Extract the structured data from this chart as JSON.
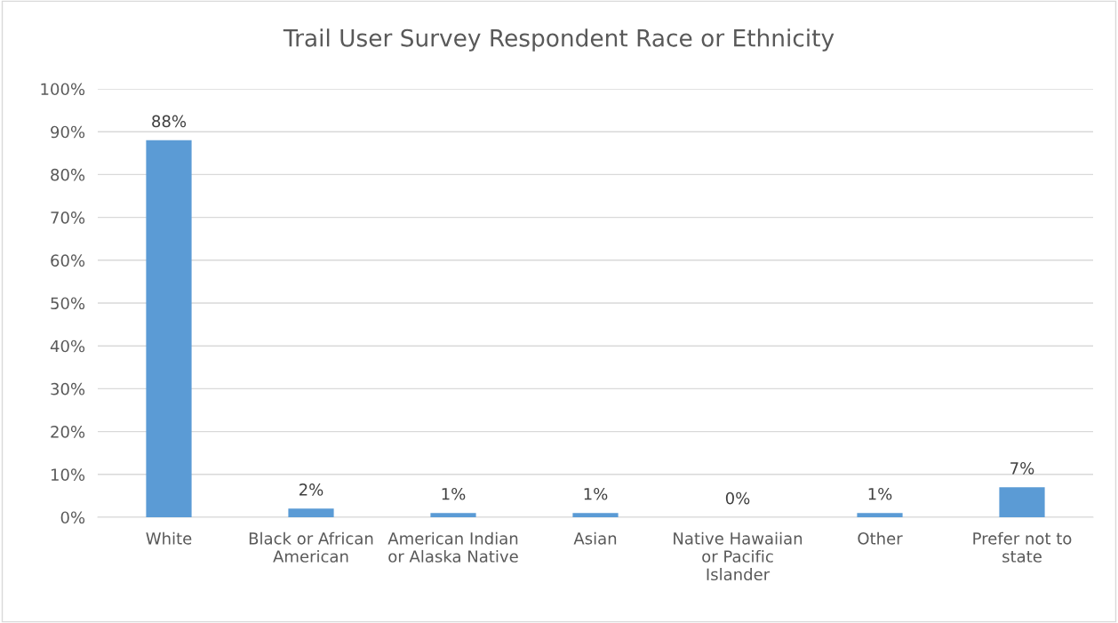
{
  "chart_data": {
    "type": "bar",
    "title": "Trail User Survey Respondent Race or Ethnicity",
    "categories": [
      "White",
      "Black or African\nAmerican",
      "American Indian\nor Alaska Native",
      "Asian",
      "Native Hawaiian\nor Pacific\nIslander",
      "Other",
      "Prefer not to\nstate"
    ],
    "values": [
      88,
      2,
      1,
      1,
      0,
      1,
      7
    ],
    "value_labels": [
      "88%",
      "2%",
      "1%",
      "1%",
      "0%",
      "1%",
      "7%"
    ],
    "color": "#5b9bd5",
    "ylim": [
      0,
      100
    ],
    "yticks": [
      {
        "value": 0,
        "label": "0%"
      },
      {
        "value": 10,
        "label": "10%"
      },
      {
        "value": 20,
        "label": "20%"
      },
      {
        "value": 30,
        "label": "30%"
      },
      {
        "value": 40,
        "label": "40%"
      },
      {
        "value": 50,
        "label": "50%"
      },
      {
        "value": 60,
        "label": "60%"
      },
      {
        "value": 70,
        "label": "70%"
      },
      {
        "value": 80,
        "label": "80%"
      },
      {
        "value": 90,
        "label": "90%"
      },
      {
        "value": 100,
        "label": "100%"
      }
    ],
    "grid": "y",
    "legend": false
  }
}
